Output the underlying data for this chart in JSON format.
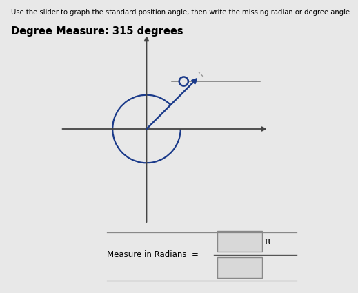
{
  "title_instruction": "Use the slider to graph the standard position angle, then write the missing radian or degree angle.",
  "degree_label": "Degree Measure: 315 degrees",
  "degree_value": 315,
  "bg_color": "#e8e8e8",
  "axis_color": "#444444",
  "angle_line_color": "#1a3a8a",
  "arc_color": "#1a3a8a",
  "radians_label": "Measure in Radians  =",
  "pi_symbol": "π",
  "fig_width": 5.19,
  "fig_height": 4.25,
  "dpi": 100
}
